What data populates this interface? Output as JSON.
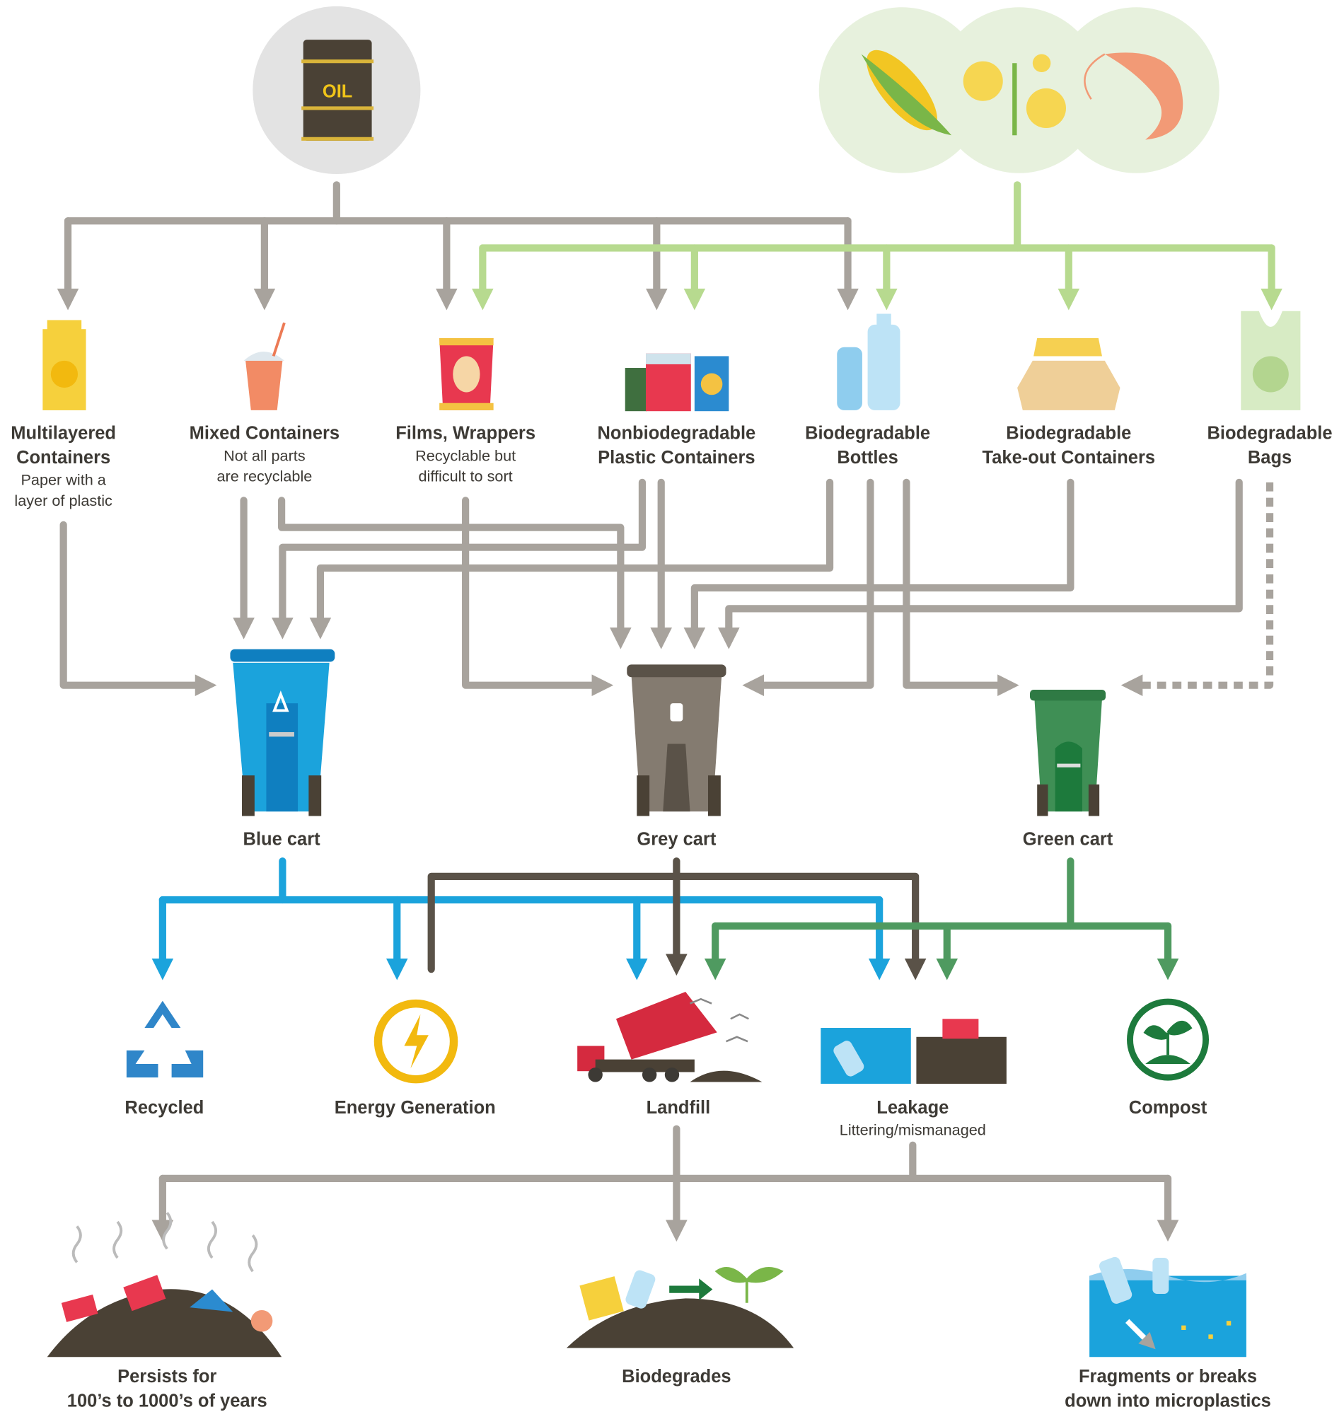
{
  "sources": {
    "oil_label": "OIL"
  },
  "products": [
    {
      "title": [
        "Multilayered",
        "Containers"
      ],
      "subtitle": [
        "Paper with a",
        "layer of plastic"
      ]
    },
    {
      "title": [
        "Mixed Containers"
      ],
      "subtitle": [
        "Not all parts",
        "are recyclable"
      ]
    },
    {
      "title": [
        "Films, Wrappers"
      ],
      "subtitle": [
        "Recyclable but",
        "difficult to sort"
      ]
    },
    {
      "title": [
        "Nonbiodegradable",
        "Plastic Containers"
      ]
    },
    {
      "title": [
        "Biodegradable",
        "Bottles"
      ]
    },
    {
      "title": [
        "Biodegradable",
        "Take-out Containers"
      ]
    },
    {
      "title": [
        "Biodegradable",
        "Bags"
      ]
    }
  ],
  "carts": [
    {
      "title": "Blue cart"
    },
    {
      "title": "Grey cart"
    },
    {
      "title": "Green cart"
    }
  ],
  "outcomes": [
    {
      "title": "Recycled"
    },
    {
      "title": "Energy Generation"
    },
    {
      "title": "Landfill"
    },
    {
      "title": "Leakage",
      "subtitle": "Littering/mismanaged"
    },
    {
      "title": "Compost"
    }
  ],
  "fates": [
    {
      "title": [
        "Persists for",
        "100’s to 1000’s of years"
      ]
    },
    {
      "title": [
        "Biodegrades"
      ]
    },
    {
      "title": [
        "Fragments or breaks",
        "down into microplastics"
      ]
    }
  ]
}
